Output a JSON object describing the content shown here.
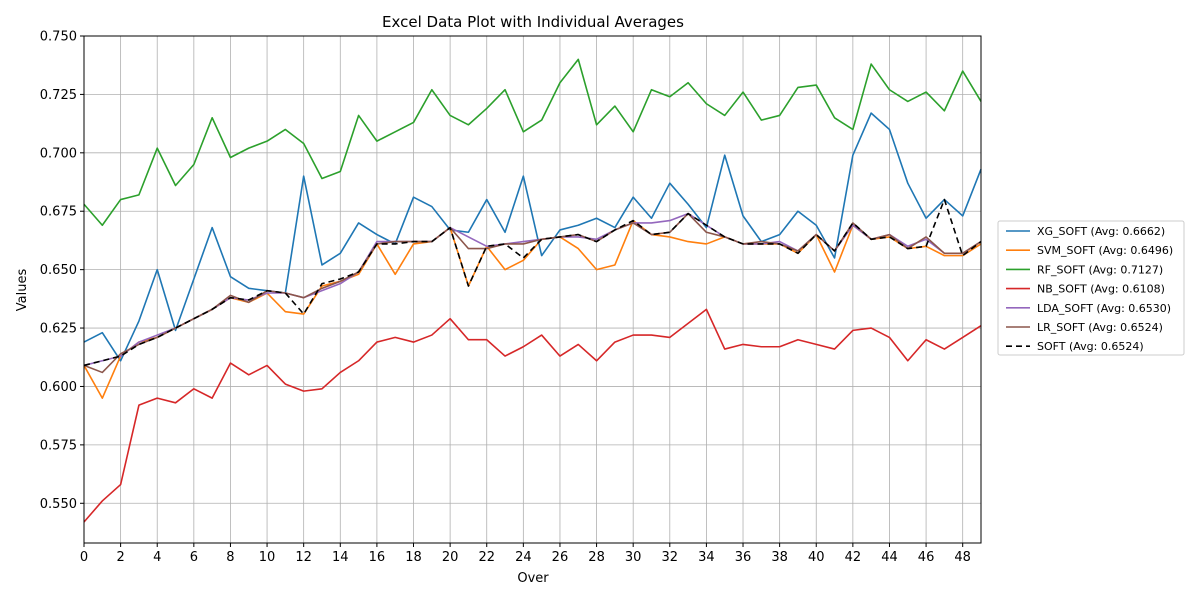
{
  "chart_data": {
    "type": "line",
    "title": "Excel Data Plot with Individual Averages",
    "xlabel": "Over",
    "ylabel": "Values",
    "xlim": [
      0,
      49
    ],
    "ylim": [
      0.533,
      0.75
    ],
    "grid": true,
    "legend_position": "outside-right",
    "x_ticks": [
      "0",
      "2",
      "4",
      "6",
      "8",
      "10",
      "12",
      "14",
      "16",
      "18",
      "20",
      "22",
      "24",
      "26",
      "28",
      "30",
      "32",
      "34",
      "36",
      "38",
      "40",
      "42",
      "44",
      "46",
      "48"
    ],
    "y_ticks": [
      "0.550",
      "0.575",
      "0.600",
      "0.625",
      "0.650",
      "0.675",
      "0.700",
      "0.725",
      "0.750"
    ],
    "x": [
      0,
      1,
      2,
      3,
      4,
      5,
      6,
      7,
      8,
      9,
      10,
      11,
      12,
      13,
      14,
      15,
      16,
      17,
      18,
      19,
      20,
      21,
      22,
      23,
      24,
      25,
      26,
      27,
      28,
      29,
      30,
      31,
      32,
      33,
      34,
      35,
      36,
      37,
      38,
      39,
      40,
      41,
      42,
      43,
      44,
      45,
      46,
      47,
      48,
      49
    ],
    "series": [
      {
        "name": "XG_SOFT (Avg: 0.6662)",
        "color": "#1f77b4",
        "dash": "",
        "values": [
          0.619,
          0.623,
          0.611,
          0.628,
          0.65,
          0.624,
          0.646,
          0.668,
          0.647,
          0.642,
          0.641,
          0.64,
          0.69,
          0.652,
          0.657,
          0.67,
          0.665,
          0.661,
          0.681,
          0.677,
          0.667,
          0.666,
          0.68,
          0.666,
          0.69,
          0.656,
          0.667,
          0.669,
          0.672,
          0.668,
          0.681,
          0.672,
          0.687,
          0.678,
          0.668,
          0.699,
          0.673,
          0.662,
          0.665,
          0.675,
          0.669,
          0.655,
          0.699,
          0.717,
          0.71,
          0.687,
          0.672,
          0.68,
          0.673,
          0.693
        ]
      },
      {
        "name": "SVM_SOFT (Avg: 0.6496)",
        "color": "#ff7f0e",
        "dash": "",
        "values": [
          0.609,
          0.595,
          0.613,
          0.619,
          0.621,
          0.625,
          0.629,
          0.633,
          0.638,
          0.636,
          0.64,
          0.632,
          0.631,
          0.643,
          0.645,
          0.648,
          0.661,
          0.648,
          0.661,
          0.662,
          0.668,
          0.643,
          0.66,
          0.65,
          0.654,
          0.663,
          0.664,
          0.659,
          0.65,
          0.652,
          0.671,
          0.665,
          0.664,
          0.662,
          0.661,
          0.664,
          0.661,
          0.661,
          0.661,
          0.657,
          0.665,
          0.649,
          0.669,
          0.663,
          0.664,
          0.659,
          0.66,
          0.656,
          0.656,
          0.661
        ]
      },
      {
        "name": "RF_SOFT (Avg: 0.7127)",
        "color": "#2ca02c",
        "dash": "",
        "values": [
          0.678,
          0.669,
          0.68,
          0.682,
          0.702,
          0.686,
          0.695,
          0.715,
          0.698,
          0.702,
          0.705,
          0.71,
          0.704,
          0.689,
          0.692,
          0.716,
          0.705,
          0.709,
          0.713,
          0.727,
          0.716,
          0.712,
          0.719,
          0.727,
          0.709,
          0.714,
          0.73,
          0.74,
          0.712,
          0.72,
          0.709,
          0.727,
          0.724,
          0.73,
          0.721,
          0.716,
          0.726,
          0.714,
          0.716,
          0.728,
          0.729,
          0.715,
          0.71,
          0.738,
          0.727,
          0.722,
          0.726,
          0.718,
          0.735,
          0.722
        ]
      },
      {
        "name": "NB_SOFT (Avg: 0.6108)",
        "color": "#d62728",
        "dash": "",
        "values": [
          0.542,
          0.551,
          0.558,
          0.592,
          0.595,
          0.593,
          0.599,
          0.595,
          0.61,
          0.605,
          0.609,
          0.601,
          0.598,
          0.599,
          0.606,
          0.611,
          0.619,
          0.621,
          0.619,
          0.622,
          0.629,
          0.62,
          0.62,
          0.613,
          0.617,
          0.622,
          0.613,
          0.618,
          0.611,
          0.619,
          0.622,
          0.622,
          0.621,
          0.627,
          0.633,
          0.616,
          0.618,
          0.617,
          0.617,
          0.62,
          0.618,
          0.616,
          0.624,
          0.625,
          0.621,
          0.611,
          0.62,
          0.616,
          0.621,
          0.626
        ]
      },
      {
        "name": "LDA_SOFT (Avg: 0.6530)",
        "color": "#9467bd",
        "dash": "",
        "values": [
          0.609,
          0.611,
          0.613,
          0.619,
          0.622,
          0.625,
          0.629,
          0.633,
          0.638,
          0.637,
          0.64,
          0.64,
          0.638,
          0.641,
          0.644,
          0.649,
          0.662,
          0.662,
          0.662,
          0.662,
          0.668,
          0.664,
          0.66,
          0.661,
          0.662,
          0.663,
          0.664,
          0.664,
          0.663,
          0.667,
          0.67,
          0.67,
          0.671,
          0.674,
          0.669,
          0.664,
          0.661,
          0.661,
          0.662,
          0.658,
          0.665,
          0.658,
          0.669,
          0.663,
          0.665,
          0.66,
          0.663,
          0.657,
          0.657,
          0.662
        ]
      },
      {
        "name": "LR_SOFT (Avg: 0.6524)",
        "color": "#8c564b",
        "dash": "",
        "values": [
          0.609,
          0.606,
          0.614,
          0.618,
          0.621,
          0.625,
          0.629,
          0.633,
          0.639,
          0.636,
          0.641,
          0.64,
          0.638,
          0.642,
          0.645,
          0.649,
          0.661,
          0.662,
          0.662,
          0.662,
          0.668,
          0.659,
          0.659,
          0.661,
          0.661,
          0.663,
          0.664,
          0.665,
          0.662,
          0.667,
          0.67,
          0.665,
          0.666,
          0.674,
          0.666,
          0.664,
          0.661,
          0.662,
          0.661,
          0.658,
          0.665,
          0.658,
          0.67,
          0.663,
          0.665,
          0.659,
          0.664,
          0.657,
          0.657,
          0.662
        ]
      },
      {
        "name": "SOFT (Avg: 0.6524)",
        "color": "#000000",
        "dash": "6,4",
        "values": [
          0.609,
          0.611,
          0.613,
          0.618,
          0.621,
          0.625,
          0.629,
          0.633,
          0.638,
          0.637,
          0.641,
          0.64,
          0.631,
          0.644,
          0.646,
          0.649,
          0.661,
          0.661,
          0.662,
          0.662,
          0.668,
          0.643,
          0.66,
          0.661,
          0.655,
          0.663,
          0.664,
          0.665,
          0.662,
          0.667,
          0.671,
          0.665,
          0.666,
          0.674,
          0.669,
          0.664,
          0.661,
          0.661,
          0.661,
          0.657,
          0.665,
          0.658,
          0.67,
          0.663,
          0.664,
          0.659,
          0.66,
          0.68,
          0.656,
          0.662
        ]
      }
    ]
  }
}
